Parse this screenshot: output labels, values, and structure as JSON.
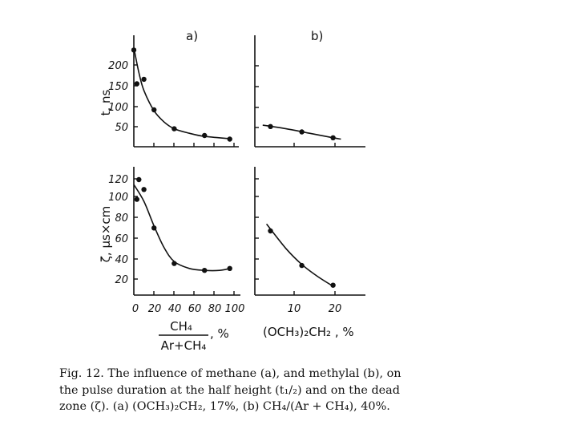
{
  "chart_data": [
    {
      "panel": "a) upper",
      "type": "scatter",
      "title": "a)",
      "ylabel": "t, ns",
      "ylim": [
        0,
        230
      ],
      "xlim": [
        0,
        100
      ],
      "y_ticks": [
        "200",
        "150",
        "100",
        "50"
      ],
      "points": [
        [
          0,
          215
        ],
        [
          3,
          140
        ],
        [
          10,
          150
        ],
        [
          20,
          82
        ],
        [
          40,
          40
        ],
        [
          70,
          25
        ],
        [
          95,
          17
        ]
      ],
      "curve": [
        [
          0,
          220
        ],
        [
          5,
          165
        ],
        [
          10,
          125
        ],
        [
          20,
          80
        ],
        [
          30,
          55
        ],
        [
          40,
          40
        ],
        [
          55,
          30
        ],
        [
          70,
          23
        ],
        [
          95,
          18
        ]
      ]
    },
    {
      "panel": "b) upper",
      "type": "scatter",
      "title": "b)",
      "ylim": [
        0,
        230
      ],
      "xlim": [
        0,
        25
      ],
      "points": [
        [
          4,
          45
        ],
        [
          12,
          33
        ],
        [
          20,
          20
        ]
      ],
      "curve": [
        [
          2,
          48
        ],
        [
          8,
          40
        ],
        [
          14,
          30
        ],
        [
          20,
          20
        ],
        [
          22,
          17
        ]
      ]
    },
    {
      "panel": "a) lower",
      "type": "scatter",
      "ylabel": "ζ, µs×cm",
      "xlabel_numerator": "CH₄",
      "xlabel_denominator": "Ar+CH₄",
      "xlabel_unit": ", %",
      "ylim": [
        0,
        130
      ],
      "xlim": [
        0,
        100
      ],
      "x_ticks": [
        "0",
        "20",
        "40",
        "60",
        "80",
        "100"
      ],
      "y_ticks": [
        "120",
        "100",
        "80",
        "60",
        "40",
        "20"
      ],
      "points": [
        [
          3,
          97
        ],
        [
          5,
          117
        ],
        [
          10,
          107
        ],
        [
          20,
          68
        ],
        [
          40,
          32
        ],
        [
          70,
          25
        ],
        [
          95,
          27
        ]
      ],
      "curve": [
        [
          0,
          112
        ],
        [
          10,
          95
        ],
        [
          20,
          70
        ],
        [
          30,
          48
        ],
        [
          40,
          34
        ],
        [
          55,
          27
        ],
        [
          70,
          25
        ],
        [
          85,
          25
        ],
        [
          95,
          27
        ]
      ]
    },
    {
      "panel": "b) lower",
      "type": "scatter",
      "xlabel": "(OCH₃)₂CH₂ , %",
      "ylim": [
        0,
        130
      ],
      "xlim": [
        0,
        25
      ],
      "x_ticks": [
        "10",
        "20"
      ],
      "points": [
        [
          4,
          65
        ],
        [
          12,
          30
        ],
        [
          20,
          10
        ]
      ],
      "curve": [
        [
          3,
          72
        ],
        [
          8,
          47
        ],
        [
          12,
          31
        ],
        [
          16,
          19
        ],
        [
          20,
          9
        ]
      ]
    }
  ],
  "caption": {
    "lines": [
      "Fig. 12. The influence of methane (a), and methylal (b), on",
      "the pulse duration at the half height (t₁/₂) and on the dead",
      "zone (ζ). (a) (OCH₃)₂CH₂, 17%, (b) CH₄/(Ar + CH₄), 40%."
    ]
  }
}
